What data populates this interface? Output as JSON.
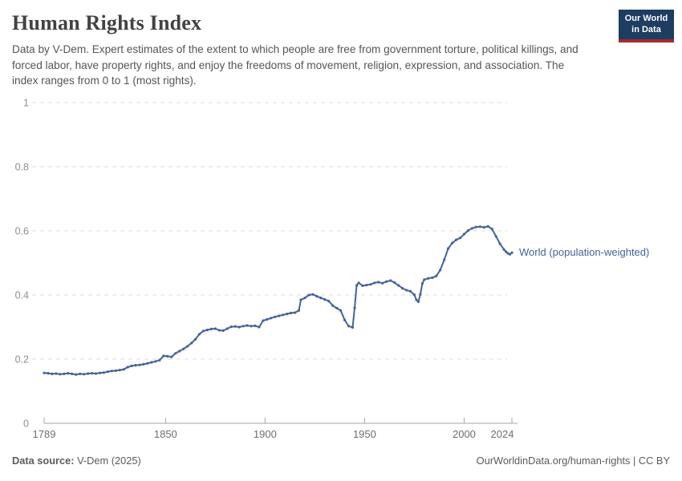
{
  "header": {
    "title": "Human Rights Index",
    "subtitle": "Data by V-Dem. Expert estimates of the extent to which people are free from government torture, political killings, and forced labor, have property rights, and enjoy the freedoms of movement, religion, expression, and association. The index ranges from 0 to 1 (most rights).",
    "logo": {
      "line1": "Our World",
      "line2": "in Data"
    }
  },
  "chart_data": {
    "type": "line",
    "title": "Human Rights Index",
    "xlabel": "",
    "ylabel": "",
    "xlim": [
      1789,
      2024
    ],
    "ylim": [
      0,
      1
    ],
    "x_ticks": [
      1789,
      1850,
      1900,
      1950,
      2000,
      2024
    ],
    "y_ticks": [
      0,
      0.2,
      0.4,
      0.6,
      0.8,
      1
    ],
    "grid": "horizontal-dashed",
    "legend_position": "end-of-line",
    "series": [
      {
        "name": "World (population-weighted)",
        "color": "#44639c",
        "points": [
          [
            1789,
            0.157
          ],
          [
            1791,
            0.156
          ],
          [
            1793,
            0.154
          ],
          [
            1795,
            0.155
          ],
          [
            1797,
            0.153
          ],
          [
            1799,
            0.154
          ],
          [
            1801,
            0.156
          ],
          [
            1803,
            0.154
          ],
          [
            1805,
            0.152
          ],
          [
            1807,
            0.154
          ],
          [
            1809,
            0.153
          ],
          [
            1811,
            0.155
          ],
          [
            1813,
            0.156
          ],
          [
            1815,
            0.155
          ],
          [
            1817,
            0.157
          ],
          [
            1819,
            0.158
          ],
          [
            1821,
            0.161
          ],
          [
            1823,
            0.163
          ],
          [
            1825,
            0.164
          ],
          [
            1827,
            0.166
          ],
          [
            1829,
            0.168
          ],
          [
            1831,
            0.175
          ],
          [
            1833,
            0.179
          ],
          [
            1835,
            0.181
          ],
          [
            1837,
            0.182
          ],
          [
            1839,
            0.184
          ],
          [
            1841,
            0.187
          ],
          [
            1843,
            0.19
          ],
          [
            1845,
            0.193
          ],
          [
            1847,
            0.197
          ],
          [
            1849,
            0.21
          ],
          [
            1851,
            0.209
          ],
          [
            1853,
            0.207
          ],
          [
            1855,
            0.218
          ],
          [
            1857,
            0.225
          ],
          [
            1859,
            0.232
          ],
          [
            1861,
            0.24
          ],
          [
            1863,
            0.25
          ],
          [
            1865,
            0.262
          ],
          [
            1867,
            0.278
          ],
          [
            1869,
            0.288
          ],
          [
            1871,
            0.291
          ],
          [
            1873,
            0.294
          ],
          [
            1875,
            0.295
          ],
          [
            1877,
            0.29
          ],
          [
            1879,
            0.289
          ],
          [
            1881,
            0.295
          ],
          [
            1883,
            0.301
          ],
          [
            1885,
            0.302
          ],
          [
            1887,
            0.3
          ],
          [
            1889,
            0.303
          ],
          [
            1891,
            0.305
          ],
          [
            1893,
            0.303
          ],
          [
            1895,
            0.304
          ],
          [
            1897,
            0.3
          ],
          [
            1899,
            0.32
          ],
          [
            1901,
            0.324
          ],
          [
            1903,
            0.328
          ],
          [
            1905,
            0.332
          ],
          [
            1907,
            0.335
          ],
          [
            1909,
            0.338
          ],
          [
            1911,
            0.341
          ],
          [
            1913,
            0.344
          ],
          [
            1915,
            0.345
          ],
          [
            1917,
            0.352
          ],
          [
            1918,
            0.385
          ],
          [
            1920,
            0.391
          ],
          [
            1922,
            0.4
          ],
          [
            1924,
            0.402
          ],
          [
            1926,
            0.396
          ],
          [
            1928,
            0.391
          ],
          [
            1930,
            0.386
          ],
          [
            1932,
            0.381
          ],
          [
            1934,
            0.367
          ],
          [
            1936,
            0.359
          ],
          [
            1938,
            0.352
          ],
          [
            1940,
            0.322
          ],
          [
            1942,
            0.303
          ],
          [
            1944,
            0.299
          ],
          [
            1945,
            0.36
          ],
          [
            1946,
            0.43
          ],
          [
            1947,
            0.438
          ],
          [
            1949,
            0.429
          ],
          [
            1951,
            0.431
          ],
          [
            1953,
            0.433
          ],
          [
            1955,
            0.438
          ],
          [
            1957,
            0.44
          ],
          [
            1959,
            0.437
          ],
          [
            1961,
            0.442
          ],
          [
            1963,
            0.445
          ],
          [
            1965,
            0.439
          ],
          [
            1967,
            0.43
          ],
          [
            1969,
            0.421
          ],
          [
            1971,
            0.415
          ],
          [
            1973,
            0.412
          ],
          [
            1975,
            0.401
          ],
          [
            1976,
            0.385
          ],
          [
            1977,
            0.379
          ],
          [
            1978,
            0.402
          ],
          [
            1979,
            0.436
          ],
          [
            1980,
            0.448
          ],
          [
            1982,
            0.452
          ],
          [
            1984,
            0.454
          ],
          [
            1986,
            0.459
          ],
          [
            1988,
            0.478
          ],
          [
            1990,
            0.51
          ],
          [
            1992,
            0.545
          ],
          [
            1994,
            0.562
          ],
          [
            1996,
            0.572
          ],
          [
            1998,
            0.578
          ],
          [
            2000,
            0.59
          ],
          [
            2002,
            0.601
          ],
          [
            2004,
            0.608
          ],
          [
            2006,
            0.612
          ],
          [
            2008,
            0.613
          ],
          [
            2010,
            0.611
          ],
          [
            2012,
            0.614
          ],
          [
            2014,
            0.606
          ],
          [
            2016,
            0.583
          ],
          [
            2018,
            0.56
          ],
          [
            2020,
            0.542
          ],
          [
            2021,
            0.535
          ],
          [
            2022,
            0.53
          ],
          [
            2023,
            0.527
          ],
          [
            2024,
            0.532
          ]
        ]
      }
    ]
  },
  "footer": {
    "source_label": "Data source:",
    "source_value": " V-Dem (2025)",
    "credit_link": "OurWorldinData.org/human-rights",
    "credit_suffix": " | CC BY"
  },
  "colors": {
    "line": "#44639c",
    "title": "#424242",
    "subtitle": "#555555",
    "axis": "#a5a5a5",
    "gridline": "#dedede",
    "y_tick_label": "#8f8f8f",
    "x_tick_label": "#6e6e6e",
    "logo_bg": "#1d3d63",
    "logo_accent": "#a52b29",
    "footer_text": "#5b5b5b"
  }
}
